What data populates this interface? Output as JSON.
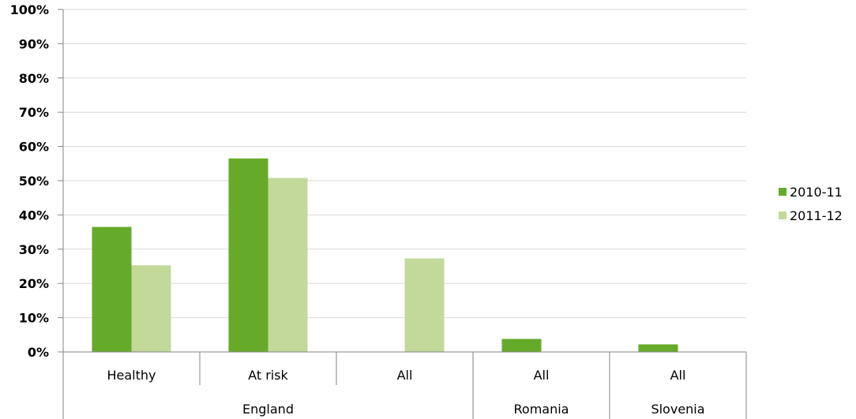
{
  "chart_data": {
    "type": "bar",
    "categories": [
      "Healthy",
      "At risk",
      "All",
      "All",
      "All"
    ],
    "groups": [
      {
        "label": "England",
        "span": 3
      },
      {
        "label": "Romania",
        "span": 1
      },
      {
        "label": "Slovenia",
        "span": 1
      }
    ],
    "series": [
      {
        "name": "2010-11",
        "color": "#66AA2A",
        "values": [
          36.5,
          56.5,
          null,
          3.8,
          2.2
        ]
      },
      {
        "name": "2011-12",
        "color": "#C2D99A",
        "values": [
          25.3,
          50.8,
          27.3,
          null,
          null
        ]
      }
    ],
    "ylim": [
      0,
      100
    ],
    "yticks": [
      "0%",
      "10%",
      "20%",
      "30%",
      "40%",
      "50%",
      "60%",
      "70%",
      "80%",
      "90%",
      "100%"
    ],
    "grid": true,
    "legend_position": "right"
  }
}
